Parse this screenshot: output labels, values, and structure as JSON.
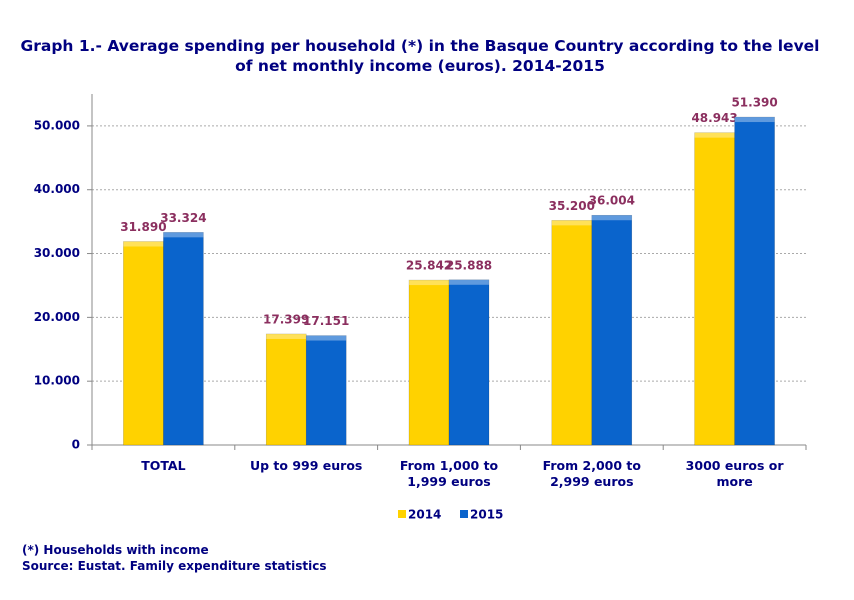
{
  "chart_data": {
    "type": "bar",
    "title": "Graph 1.- Average spending per household (*) in the Basque Country according to the level of net monthly income (euros). 2014-2015",
    "categories": [
      "TOTAL",
      "Up to 999 euros",
      "From 1,000 to 1,999 euros",
      "From 2,000 to 2,999 euros",
      "3000 euros or more"
    ],
    "series": [
      {
        "name": "2014",
        "color": "#ffd200",
        "values": [
          31890,
          17399,
          25842,
          35200,
          48943
        ],
        "value_labels": [
          "31.890",
          "17.399",
          "25.842",
          "35.200",
          "48.943"
        ]
      },
      {
        "name": "2015",
        "color": "#0a64cc",
        "values": [
          33324,
          17151,
          25888,
          36004,
          51390
        ],
        "value_labels": [
          "33.324",
          "17.151",
          "25.888",
          "36.004",
          "51.390"
        ]
      }
    ],
    "ylim": [
      0,
      55000
    ],
    "yticks": [
      0,
      {
        "value": 10000,
        "label": "10.000"
      },
      {
        "value": 20000,
        "label": "20.000"
      },
      {
        "value": 30000,
        "label": "30.000"
      },
      {
        "value": 40000,
        "label": "40.000"
      },
      {
        "value": 50000,
        "label": "50.000"
      }
    ],
    "grid": true,
    "legend": "bottom",
    "notes": [
      "(*) Households with income",
      "Source: Eustat. Family expenditure statistics"
    ]
  }
}
